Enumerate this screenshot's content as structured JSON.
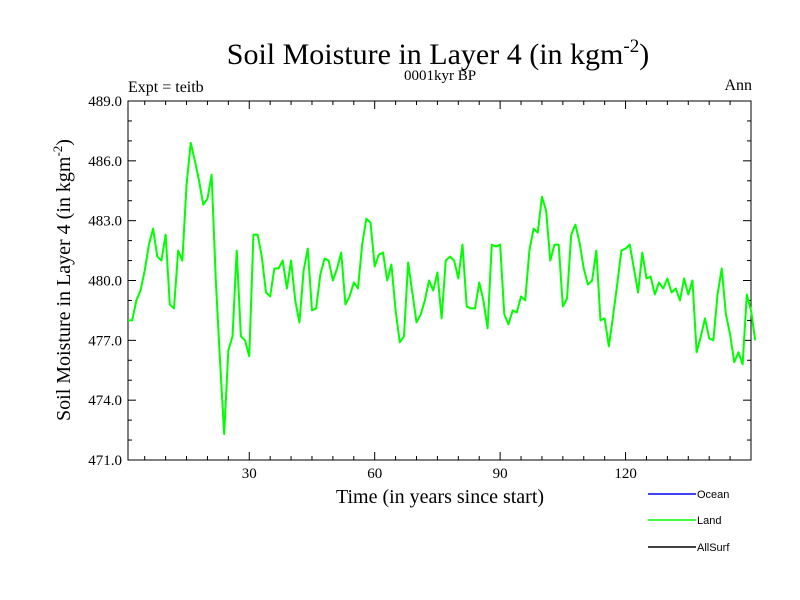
{
  "chart_data": {
    "type": "line",
    "title_main": "Soil Moisture in Layer 4 (in kgm",
    "title_sup": "-2",
    "title_close": ")",
    "subtitle": "0001kyr BP",
    "left_label": "Expt = teitb",
    "right_label": "Ann",
    "xlabel": "Time (in years since start)",
    "ylabel_main": "Soil Moisture in Layer 4 (in kgm",
    "ylabel_sup": "-2",
    "ylabel_close": ")",
    "xlim": [
      1,
      150
    ],
    "ylim": [
      471.0,
      489.0
    ],
    "x_ticks": [
      30,
      60,
      90,
      120
    ],
    "x_tick_labels": [
      "30",
      "60",
      "90",
      "120"
    ],
    "y_ticks": [
      471,
      474,
      477,
      480,
      483,
      486,
      489
    ],
    "y_tick_labels": [
      "471.0",
      "474.0",
      "477.0",
      "480.0",
      "483.0",
      "486.0",
      "489.0"
    ],
    "legend": [
      {
        "name": "Ocean",
        "color": "#0000ff"
      },
      {
        "name": "Land",
        "color": "#00ff00"
      },
      {
        "name": "AllSurf",
        "color": "#000000"
      }
    ],
    "series": [
      {
        "name": "Land",
        "color": "#00ff00",
        "x_start": 1,
        "x_step": 1,
        "values": [
          478.0,
          478.0,
          479.0,
          479.5,
          480.5,
          481.8,
          482.6,
          481.2,
          481.0,
          482.3,
          478.8,
          478.6,
          481.5,
          481.0,
          484.8,
          486.9,
          486.0,
          485.0,
          483.8,
          484.1,
          485.3,
          480.0,
          476.0,
          472.3,
          476.5,
          477.2,
          481.5,
          477.2,
          477.0,
          476.2,
          482.3,
          482.3,
          481.2,
          479.4,
          479.2,
          480.6,
          480.6,
          481.0,
          479.6,
          481.0,
          479.0,
          477.9,
          480.5,
          481.6,
          478.5,
          478.6,
          480.3,
          481.1,
          481.0,
          480.0,
          480.6,
          481.4,
          478.8,
          479.2,
          479.9,
          479.6,
          481.8,
          483.1,
          482.9,
          480.7,
          481.3,
          481.4,
          480.0,
          480.8,
          478.5,
          476.9,
          477.2,
          480.9,
          479.4,
          477.9,
          478.3,
          479.0,
          480.0,
          479.5,
          480.4,
          478.1,
          481.0,
          481.2,
          481.0,
          480.1,
          481.8,
          478.7,
          478.6,
          478.6,
          479.9,
          479.0,
          477.6,
          481.8,
          481.7,
          481.8,
          478.3,
          477.8,
          478.5,
          478.4,
          479.2,
          479.0,
          481.5,
          482.6,
          482.4,
          484.2,
          483.5,
          481.0,
          481.8,
          481.8,
          478.7,
          479.1,
          482.3,
          482.8,
          481.9,
          480.6,
          479.8,
          480.0,
          481.5,
          478.0,
          478.1,
          476.7,
          478.2,
          479.8,
          481.5,
          481.6,
          481.8,
          480.6,
          479.4,
          481.4,
          480.1,
          480.2,
          479.3,
          479.9,
          479.6,
          480.1,
          479.4,
          479.6,
          479.0,
          480.1,
          479.3,
          480.0,
          476.4,
          477.2,
          478.1,
          477.1,
          477.0,
          479.3,
          480.6,
          478.3,
          477.3,
          475.9,
          476.4,
          475.8,
          479.3,
          478.5,
          477.0
        ]
      }
    ]
  }
}
